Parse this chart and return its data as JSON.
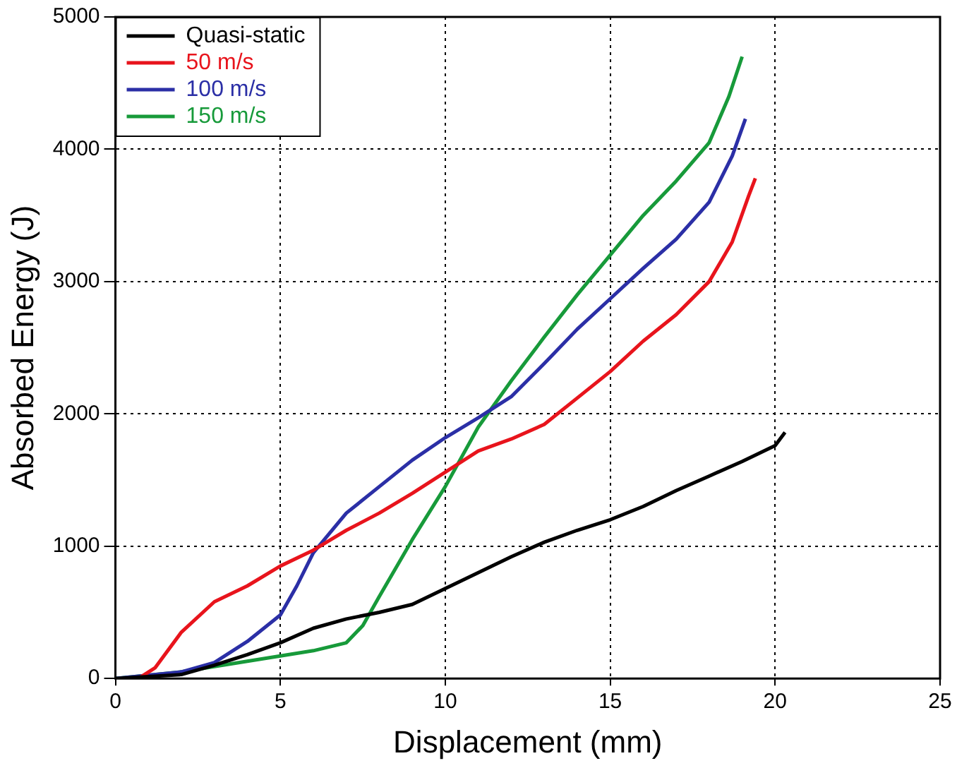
{
  "chart_data": {
    "type": "line",
    "xlabel": "Displacement (mm)",
    "ylabel": "Absorbed Energy (J)",
    "xlim": [
      0,
      25
    ],
    "xticks": [
      0,
      5,
      10,
      15,
      20,
      25
    ],
    "ylim": [
      0,
      5000
    ],
    "yticks": [
      0,
      1000,
      2000,
      3000,
      4000,
      5000
    ],
    "grid": true,
    "legend": "top left",
    "marker": "none",
    "line_style": "solid",
    "series": [
      {
        "name": "Quasi-static",
        "color": "#000000",
        "x": [
          0,
          2,
          3,
          4,
          5,
          6,
          7,
          8,
          9,
          10,
          11,
          12,
          13,
          14,
          15,
          16,
          17,
          18,
          19,
          20,
          20.3
        ],
        "values": [
          0,
          30,
          100,
          180,
          270,
          380,
          450,
          500,
          560,
          680,
          800,
          920,
          1030,
          1120,
          1200,
          1300,
          1420,
          1530,
          1640,
          1760,
          1860
        ]
      },
      {
        "name": "50 m/s",
        "color": "#e8141c",
        "x": [
          0.7,
          1.2,
          2,
          3,
          4,
          5,
          6,
          7,
          8,
          9,
          10,
          11,
          12,
          13,
          14,
          15,
          16,
          17,
          18,
          18.7,
          19.2,
          19.4
        ],
        "values": [
          0,
          80,
          350,
          580,
          700,
          850,
          970,
          1120,
          1250,
          1400,
          1560,
          1720,
          1810,
          1920,
          2120,
          2320,
          2550,
          2750,
          3000,
          3300,
          3650,
          3780
        ]
      },
      {
        "name": "100 m/s",
        "color": "#2b2fa6",
        "x": [
          0,
          2,
          3,
          4,
          5,
          5.5,
          6,
          7,
          8,
          9,
          10,
          11,
          12,
          13,
          14,
          15,
          16,
          17,
          18,
          18.7,
          19.1
        ],
        "values": [
          0,
          50,
          120,
          280,
          480,
          700,
          950,
          1250,
          1450,
          1650,
          1820,
          1970,
          2130,
          2380,
          2640,
          2870,
          3100,
          3320,
          3600,
          3950,
          4230
        ]
      },
      {
        "name": "150 m/s",
        "color": "#179a3a",
        "x": [
          0,
          2,
          3,
          4,
          5,
          6,
          7,
          7.5,
          8,
          9,
          10,
          11,
          12,
          13,
          14,
          15,
          16,
          17,
          18,
          18.6,
          19
        ],
        "values": [
          0,
          50,
          90,
          130,
          170,
          210,
          270,
          400,
          620,
          1050,
          1450,
          1900,
          2250,
          2580,
          2900,
          3200,
          3500,
          3760,
          4050,
          4400,
          4700
        ]
      }
    ]
  }
}
